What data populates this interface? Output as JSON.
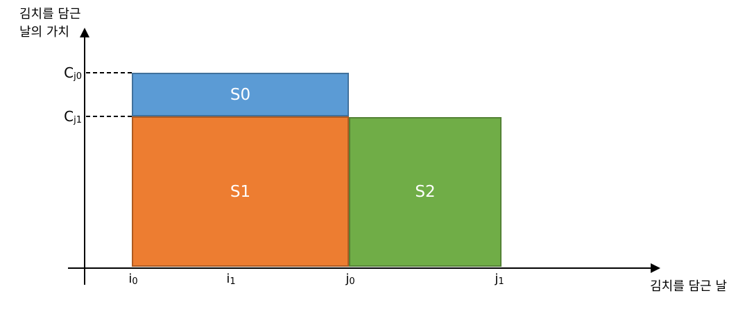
{
  "axes": {
    "y_title": "김치를 담근\n날의 가치",
    "x_title": "김치를 담근 날"
  },
  "y_ticks": [
    {
      "base": "C",
      "sub": "j0"
    },
    {
      "base": "C",
      "sub": "j1"
    }
  ],
  "x_ticks": [
    {
      "base": "i",
      "sub": "0"
    },
    {
      "base": "i",
      "sub": "1"
    },
    {
      "base": "j",
      "sub": "0"
    },
    {
      "base": "j",
      "sub": "1"
    }
  ],
  "regions": [
    {
      "label": "S0",
      "fill": "#5B9BD5",
      "border": "#41719C"
    },
    {
      "label": "S1",
      "fill": "#ED7D31",
      "border": "#AE5A21"
    },
    {
      "label": "S2",
      "fill": "#70AD47",
      "border": "#548235"
    }
  ],
  "colors": {
    "axis": "#000000",
    "text": "#000000",
    "region_label": "#FFFFFF",
    "background": "#FFFFFF"
  },
  "chart_data": {
    "type": "area",
    "title": "",
    "xlabel": "김치를 담근 날",
    "ylabel": "김치를 담근 날의 가치",
    "x_tick_labels": [
      "i0",
      "i1",
      "j0",
      "j1"
    ],
    "y_tick_labels": [
      "Cj0",
      "Cj1"
    ],
    "grid": false,
    "legend": false,
    "regions": [
      {
        "name": "S0",
        "x_range": [
          "i0",
          "j0"
        ],
        "y_range": [
          "Cj1",
          "Cj0"
        ],
        "color": "#5B9BD5",
        "note": "blue band between Cj1 and Cj0 over [i0, j0]"
      },
      {
        "name": "S1",
        "x_range": [
          "i0",
          "j0"
        ],
        "y_range": [
          "0",
          "Cj1"
        ],
        "color": "#ED7D31",
        "note": "orange block from x-axis up to Cj1 over [i0, j0]"
      },
      {
        "name": "S2",
        "x_range": [
          "j0",
          "j1"
        ],
        "y_range": [
          "0",
          "Cj1"
        ],
        "color": "#70AD47",
        "note": "green block from x-axis up to Cj1 over [j0, j1]"
      }
    ],
    "annotations": [
      {
        "text": "dashed guide from y-axis to S0 top at Cj0"
      },
      {
        "text": "dashed guide from y-axis to S0/S1 boundary at Cj1"
      }
    ]
  }
}
